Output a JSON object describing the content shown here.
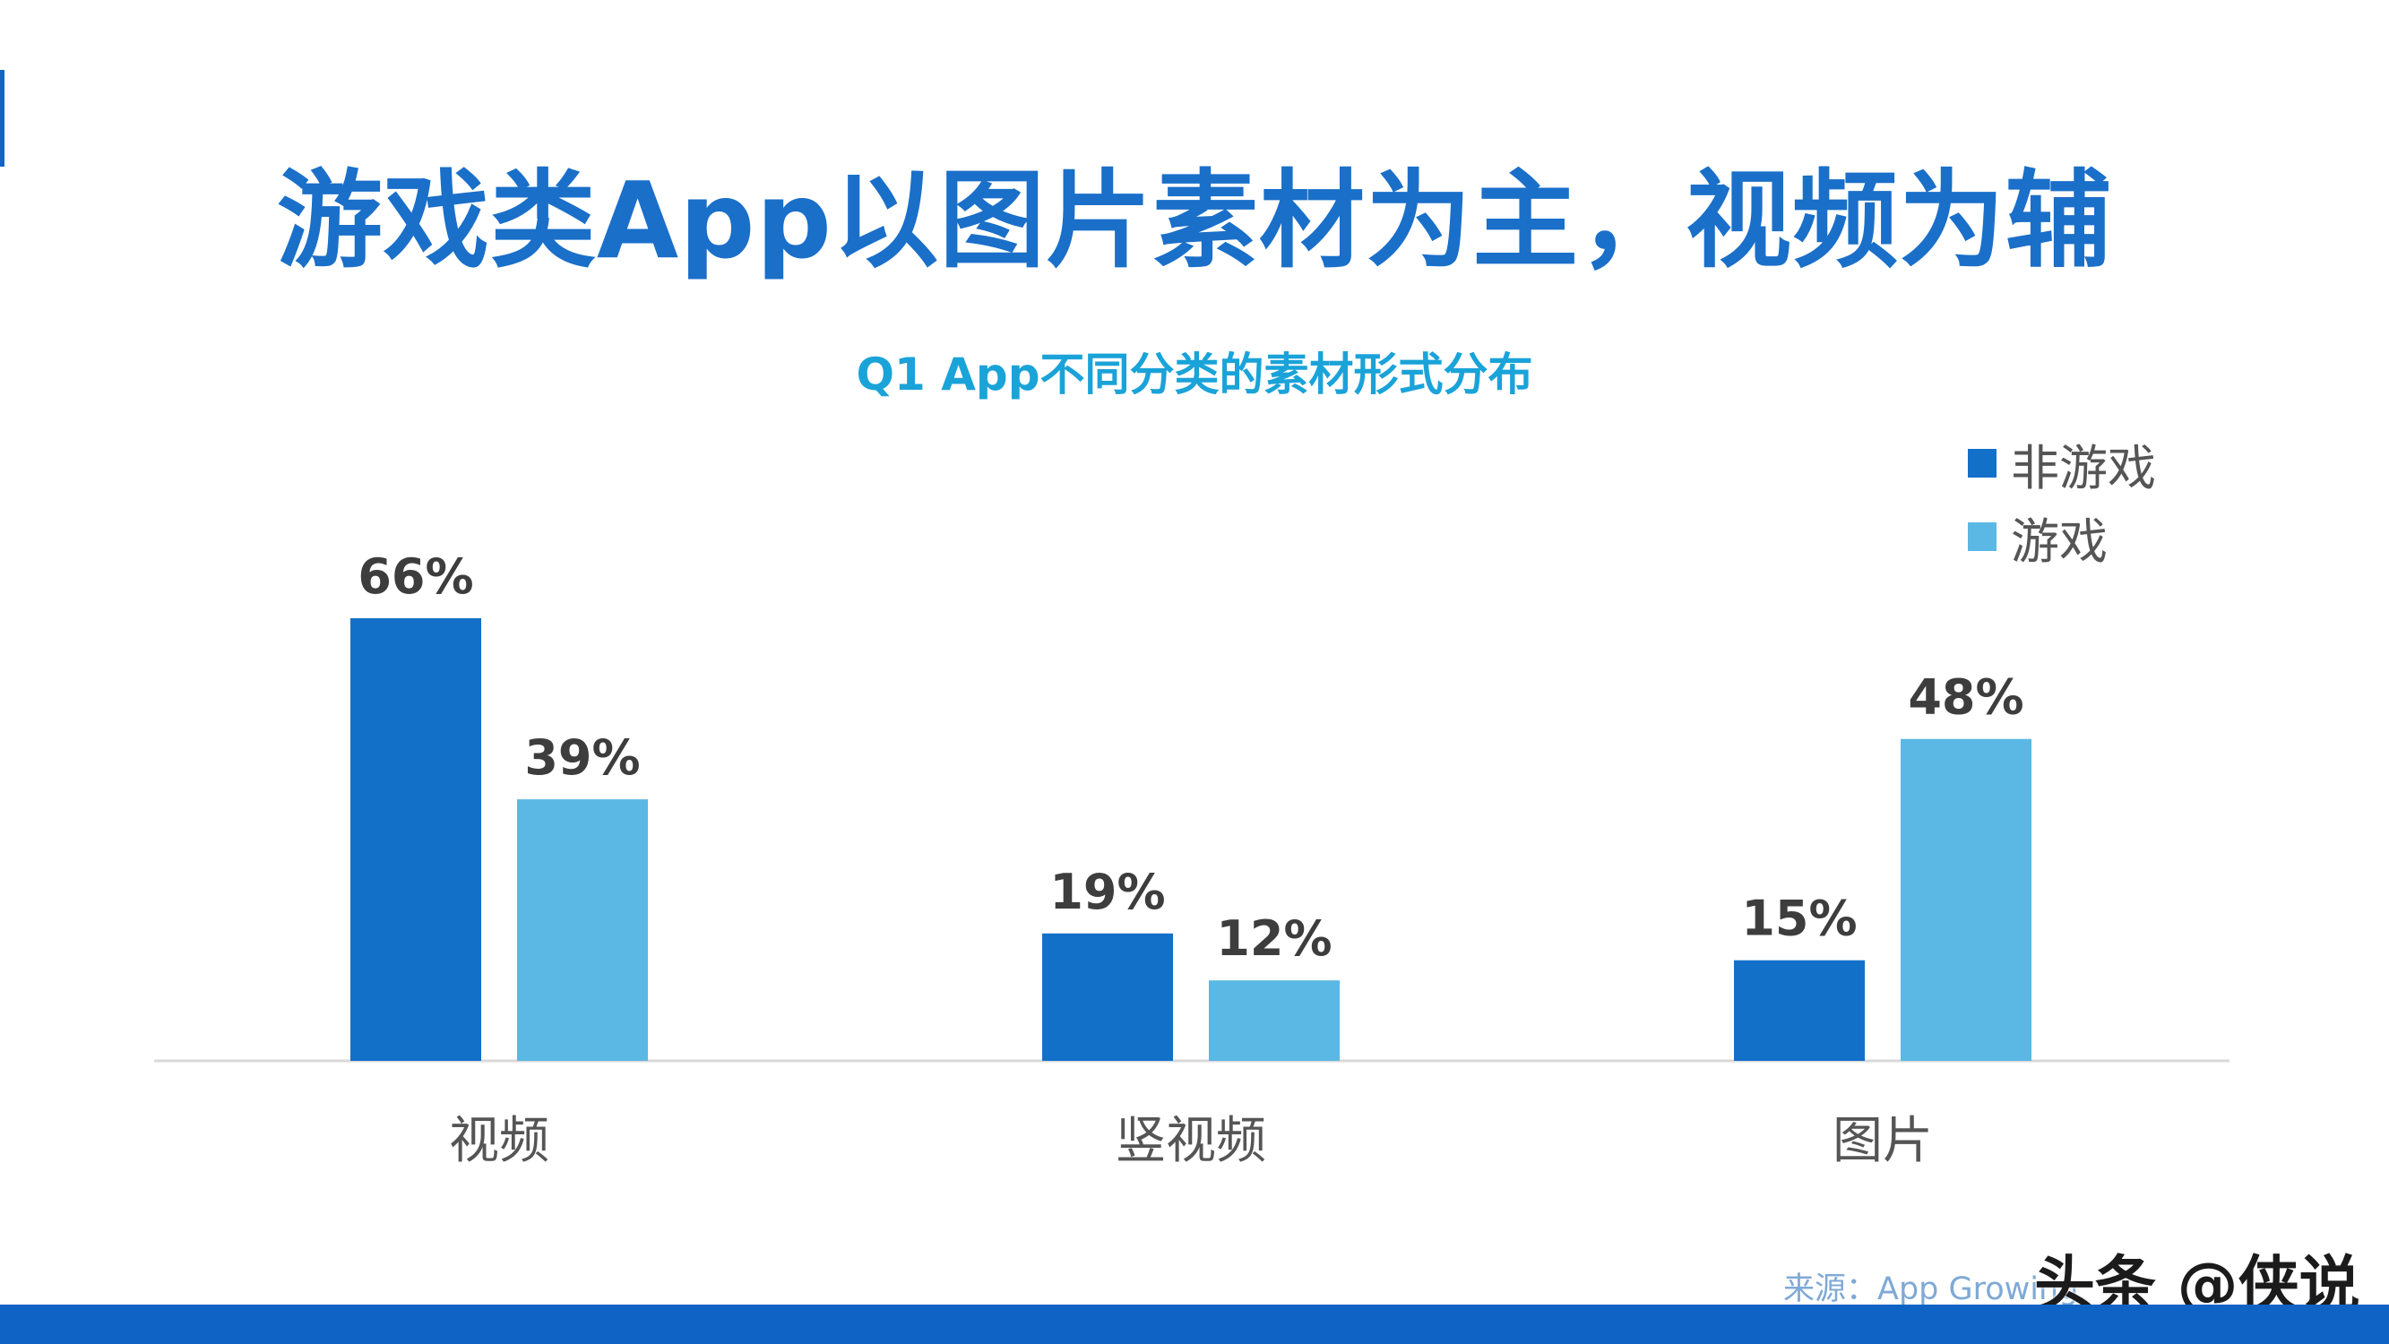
{
  "header": {
    "title": "游戏类App以图片素材为主，视频为辅"
  },
  "chart_data": {
    "type": "bar",
    "title": "Q1 App不同分类的素材形式分布",
    "categories": [
      "视频",
      "竖视频",
      "图片"
    ],
    "series": [
      {
        "name": "非游戏",
        "values": [
          66,
          19,
          15
        ],
        "color": "#1370c9"
      },
      {
        "name": "游戏",
        "values": [
          39,
          12,
          48
        ],
        "color": "#5bb8e4"
      }
    ],
    "value_labels": [
      [
        "66%",
        "19%",
        "15%"
      ],
      [
        "39%",
        "12%",
        "48%"
      ]
    ],
    "ylim": [
      0,
      66
    ],
    "grid": false,
    "legend_position": "top-right"
  },
  "footer": {
    "source": "来源：App Growing",
    "watermark": "头条 @侠说"
  },
  "colors": {
    "title": "#1a6fc9",
    "subtitle": "#1aa3d8",
    "bottom_bar": "#0e63c4"
  }
}
